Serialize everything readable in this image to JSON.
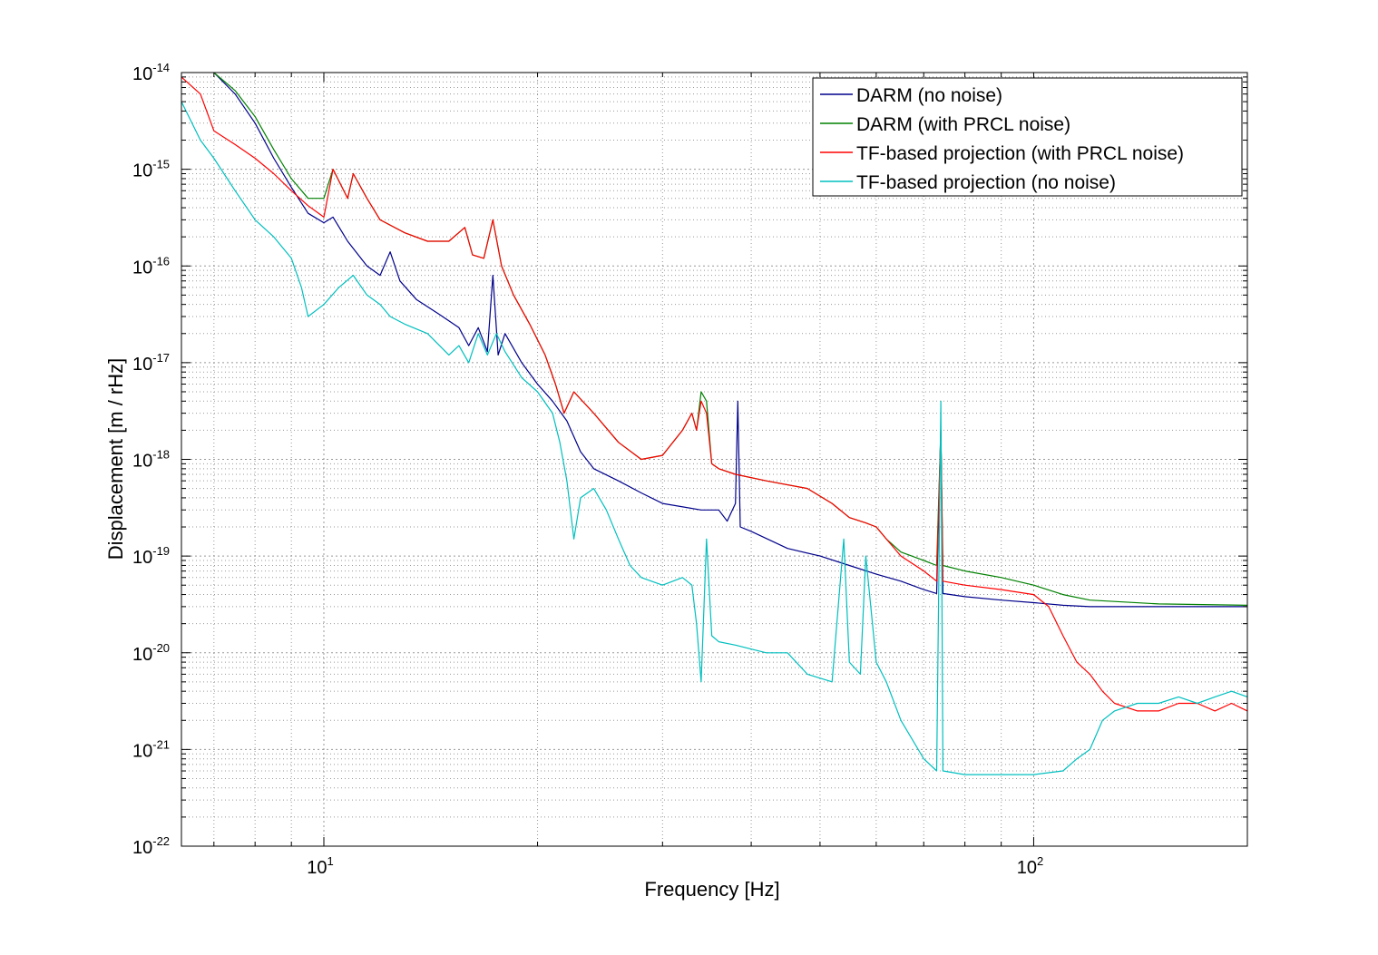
{
  "chart_data": {
    "type": "line",
    "xlabel": "Frequency [Hz]",
    "ylabel": "Displacement [m / rHz]",
    "x_scale": "log",
    "y_scale": "log",
    "xlim": [
      6.3,
      200
    ],
    "ylim": [
      1e-22,
      1e-14
    ],
    "x_major_ticks": [
      {
        "value": 10,
        "base": "10",
        "exp": "1"
      },
      {
        "value": 100,
        "base": "10",
        "exp": "2"
      }
    ],
    "y_major_ticks": [
      {
        "value": 1e-14,
        "base": "10",
        "exp": "-14"
      },
      {
        "value": 1e-15,
        "base": "10",
        "exp": "-15"
      },
      {
        "value": 1e-16,
        "base": "10",
        "exp": "-16"
      },
      {
        "value": 1e-17,
        "base": "10",
        "exp": "-17"
      },
      {
        "value": 1e-18,
        "base": "10",
        "exp": "-18"
      },
      {
        "value": 1e-19,
        "base": "10",
        "exp": "-19"
      },
      {
        "value": 1e-20,
        "base": "10",
        "exp": "-20"
      },
      {
        "value": 1e-21,
        "base": "10",
        "exp": "-21"
      },
      {
        "value": 1e-22,
        "base": "10",
        "exp": "-22"
      }
    ],
    "grid": true,
    "legend_position": "top-right",
    "series": [
      {
        "name": "DARM (no noise)",
        "color": "#00008b",
        "points": [
          [
            7.0,
            1e-14
          ],
          [
            7.5,
            6e-15
          ],
          [
            8.0,
            3e-15
          ],
          [
            8.5,
            1.3e-15
          ],
          [
            9.0,
            6.5e-16
          ],
          [
            9.5,
            3.5e-16
          ],
          [
            10.0,
            2.8e-16
          ],
          [
            10.3,
            3.2e-16
          ],
          [
            10.8,
            1.8e-16
          ],
          [
            11.5,
            1e-16
          ],
          [
            12.0,
            8e-17
          ],
          [
            12.4,
            1.4e-16
          ],
          [
            12.8,
            7e-17
          ],
          [
            13.5,
            4.5e-17
          ],
          [
            14.5,
            3.2e-17
          ],
          [
            15.5,
            2.3e-17
          ],
          [
            16.0,
            1.5e-17
          ],
          [
            16.5,
            2.3e-17
          ],
          [
            17.0,
            1.3e-17
          ],
          [
            17.3,
            8e-17
          ],
          [
            17.6,
            1.2e-17
          ],
          [
            18.0,
            2e-17
          ],
          [
            19.0,
            1e-17
          ],
          [
            20.0,
            6e-18
          ],
          [
            21.0,
            4e-18
          ],
          [
            22.0,
            2.5e-18
          ],
          [
            23.0,
            1.2e-18
          ],
          [
            24.0,
            8e-19
          ],
          [
            26.0,
            6e-19
          ],
          [
            28.0,
            4.5e-19
          ],
          [
            30.0,
            3.5e-19
          ],
          [
            34.0,
            3e-19
          ],
          [
            36.0,
            3e-19
          ],
          [
            37.0,
            2.3e-19
          ],
          [
            38.0,
            3.5e-19
          ],
          [
            38.3,
            4e-18
          ],
          [
            38.6,
            2e-19
          ],
          [
            40.0,
            1.8e-19
          ],
          [
            45.0,
            1.2e-19
          ],
          [
            50.0,
            1e-19
          ],
          [
            55.0,
            8e-20
          ],
          [
            60.0,
            6.5e-20
          ],
          [
            65.0,
            5.5e-20
          ],
          [
            70.0,
            4.5e-20
          ],
          [
            73.0,
            4.1e-20
          ],
          [
            74.0,
            2e-18
          ],
          [
            74.5,
            4.1e-20
          ],
          [
            80.0,
            3.8e-20
          ],
          [
            90.0,
            3.5e-20
          ],
          [
            100.0,
            3.3e-20
          ],
          [
            110.0,
            3.1e-20
          ],
          [
            120.0,
            3e-20
          ],
          [
            150.0,
            3e-20
          ],
          [
            200.0,
            3e-20
          ]
        ]
      },
      {
        "name": "DARM (with PRCL noise)",
        "color": "#008000",
        "points": [
          [
            7.0,
            1e-14
          ],
          [
            7.5,
            6.5e-15
          ],
          [
            8.0,
            3.5e-15
          ],
          [
            8.5,
            1.6e-15
          ],
          [
            9.0,
            8e-16
          ],
          [
            9.5,
            5e-16
          ],
          [
            10.0,
            5e-16
          ],
          [
            10.3,
            1e-15
          ],
          [
            10.8,
            5e-16
          ],
          [
            11.0,
            9e-16
          ],
          [
            11.5,
            5e-16
          ],
          [
            12.0,
            3e-16
          ],
          [
            13.0,
            2.2e-16
          ],
          [
            14.0,
            1.8e-16
          ],
          [
            15.0,
            1.8e-16
          ],
          [
            15.8,
            2.5e-16
          ],
          [
            16.2,
            1.3e-16
          ],
          [
            16.8,
            1.2e-16
          ],
          [
            17.3,
            3e-16
          ],
          [
            17.8,
            1e-16
          ],
          [
            18.5,
            5e-17
          ],
          [
            19.5,
            2.5e-17
          ],
          [
            20.5,
            1.2e-17
          ],
          [
            21.2,
            6e-18
          ],
          [
            21.8,
            3e-18
          ],
          [
            22.5,
            5e-18
          ],
          [
            24.0,
            3e-18
          ],
          [
            26.0,
            1.5e-18
          ],
          [
            28.0,
            1e-18
          ],
          [
            30.0,
            1.1e-18
          ],
          [
            32.0,
            2e-18
          ],
          [
            33.0,
            3e-18
          ],
          [
            33.5,
            2e-18
          ],
          [
            34.0,
            5e-18
          ],
          [
            34.6,
            4e-18
          ],
          [
            35.2,
            9e-19
          ],
          [
            36.0,
            8e-19
          ],
          [
            38.0,
            7e-19
          ],
          [
            42.0,
            6e-19
          ],
          [
            48.0,
            5e-19
          ],
          [
            52.0,
            3.5e-19
          ],
          [
            55.0,
            2.5e-19
          ],
          [
            58.0,
            2.2e-19
          ],
          [
            60.0,
            2e-19
          ],
          [
            62.0,
            1.5e-19
          ],
          [
            65.0,
            1.1e-19
          ],
          [
            70.0,
            9e-20
          ],
          [
            73.0,
            8e-20
          ],
          [
            74.0,
            2e-18
          ],
          [
            74.5,
            8e-20
          ],
          [
            80.0,
            7e-20
          ],
          [
            90.0,
            6e-20
          ],
          [
            100.0,
            5e-20
          ],
          [
            110.0,
            4e-20
          ],
          [
            120.0,
            3.5e-20
          ],
          [
            150.0,
            3.2e-20
          ],
          [
            200.0,
            3.1e-20
          ]
        ]
      },
      {
        "name": "TF-based projection (with PRCL noise)",
        "color": "#ff0000",
        "points": [
          [
            6.3,
            9e-15
          ],
          [
            6.7,
            6e-15
          ],
          [
            7.0,
            2.5e-15
          ],
          [
            7.5,
            1.8e-15
          ],
          [
            8.0,
            1.3e-15
          ],
          [
            8.5,
            9e-16
          ],
          [
            9.0,
            6e-16
          ],
          [
            9.5,
            4.2e-16
          ],
          [
            10.0,
            3.2e-16
          ],
          [
            10.3,
            1e-15
          ],
          [
            10.8,
            5e-16
          ],
          [
            11.0,
            9e-16
          ],
          [
            11.5,
            5e-16
          ],
          [
            12.0,
            3e-16
          ],
          [
            13.0,
            2.2e-16
          ],
          [
            14.0,
            1.8e-16
          ],
          [
            15.0,
            1.8e-16
          ],
          [
            15.8,
            2.5e-16
          ],
          [
            16.2,
            1.3e-16
          ],
          [
            16.8,
            1.2e-16
          ],
          [
            17.3,
            3e-16
          ],
          [
            17.8,
            1e-16
          ],
          [
            18.5,
            5e-17
          ],
          [
            19.5,
            2.5e-17
          ],
          [
            20.5,
            1.2e-17
          ],
          [
            21.2,
            6e-18
          ],
          [
            21.8,
            3e-18
          ],
          [
            22.5,
            5e-18
          ],
          [
            24.0,
            3e-18
          ],
          [
            26.0,
            1.5e-18
          ],
          [
            28.0,
            1e-18
          ],
          [
            30.0,
            1.1e-18
          ],
          [
            32.0,
            2e-18
          ],
          [
            33.0,
            3e-18
          ],
          [
            33.5,
            2e-18
          ],
          [
            34.0,
            4e-18
          ],
          [
            34.6,
            3e-18
          ],
          [
            35.2,
            9e-19
          ],
          [
            36.0,
            8e-19
          ],
          [
            38.0,
            7e-19
          ],
          [
            42.0,
            6e-19
          ],
          [
            48.0,
            5e-19
          ],
          [
            52.0,
            3.5e-19
          ],
          [
            55.0,
            2.5e-19
          ],
          [
            58.0,
            2.2e-19
          ],
          [
            60.0,
            2e-19
          ],
          [
            62.0,
            1.5e-19
          ],
          [
            65.0,
            1e-19
          ],
          [
            70.0,
            7e-20
          ],
          [
            73.0,
            5.5e-20
          ],
          [
            74.0,
            2e-18
          ],
          [
            74.5,
            5.5e-20
          ],
          [
            80.0,
            5e-20
          ],
          [
            90.0,
            4.5e-20
          ],
          [
            100.0,
            4e-20
          ],
          [
            105.0,
            3e-20
          ],
          [
            110.0,
            1.5e-20
          ],
          [
            115.0,
            8e-21
          ],
          [
            120.0,
            6e-21
          ],
          [
            125.0,
            4e-21
          ],
          [
            130.0,
            3e-21
          ],
          [
            140.0,
            2.5e-21
          ],
          [
            150.0,
            2.5e-21
          ],
          [
            160.0,
            3e-21
          ],
          [
            170.0,
            3e-21
          ],
          [
            180.0,
            2.5e-21
          ],
          [
            190.0,
            3e-21
          ],
          [
            200.0,
            2.5e-21
          ]
        ]
      },
      {
        "name": "TF-based projection (no noise)",
        "color": "#00bfbf",
        "points": [
          [
            6.3,
            5e-15
          ],
          [
            6.7,
            2e-15
          ],
          [
            7.0,
            1.3e-15
          ],
          [
            7.5,
            6e-16
          ],
          [
            8.0,
            3e-16
          ],
          [
            8.5,
            2e-16
          ],
          [
            9.0,
            1.2e-16
          ],
          [
            9.3,
            6e-17
          ],
          [
            9.5,
            3e-17
          ],
          [
            10.0,
            4e-17
          ],
          [
            10.5,
            6e-17
          ],
          [
            11.0,
            8e-17
          ],
          [
            11.5,
            5e-17
          ],
          [
            12.0,
            4e-17
          ],
          [
            12.4,
            3e-17
          ],
          [
            13.0,
            2.5e-17
          ],
          [
            14.0,
            2e-17
          ],
          [
            15.0,
            1.2e-17
          ],
          [
            15.5,
            1.5e-17
          ],
          [
            16.0,
            1e-17
          ],
          [
            16.5,
            2e-17
          ],
          [
            17.0,
            1.2e-17
          ],
          [
            17.5,
            2e-17
          ],
          [
            18.0,
            1.3e-17
          ],
          [
            19.0,
            7e-18
          ],
          [
            20.0,
            5e-18
          ],
          [
            21.0,
            3e-18
          ],
          [
            21.5,
            1.5e-18
          ],
          [
            22.0,
            6e-19
          ],
          [
            22.5,
            1.5e-19
          ],
          [
            23.0,
            4e-19
          ],
          [
            24.0,
            5e-19
          ],
          [
            25.0,
            3e-19
          ],
          [
            26.0,
            1.5e-19
          ],
          [
            27.0,
            8e-20
          ],
          [
            28.0,
            6e-20
          ],
          [
            30.0,
            5e-20
          ],
          [
            32.0,
            6e-20
          ],
          [
            33.0,
            5e-20
          ],
          [
            33.5,
            2e-20
          ],
          [
            34.0,
            5e-21
          ],
          [
            34.6,
            1.5e-19
          ],
          [
            35.2,
            1.5e-20
          ],
          [
            36.0,
            1.3e-20
          ],
          [
            38.0,
            1.2e-20
          ],
          [
            42.0,
            1e-20
          ],
          [
            45.0,
            1e-20
          ],
          [
            48.0,
            6e-21
          ],
          [
            52.0,
            5e-21
          ],
          [
            54.0,
            1.5e-19
          ],
          [
            55.0,
            8e-21
          ],
          [
            57.0,
            6e-21
          ],
          [
            58.0,
            1e-19
          ],
          [
            60.0,
            8e-21
          ],
          [
            62.0,
            5e-21
          ],
          [
            65.0,
            2e-21
          ],
          [
            70.0,
            8e-22
          ],
          [
            73.0,
            6e-22
          ],
          [
            74.0,
            4e-18
          ],
          [
            74.5,
            6e-22
          ],
          [
            80.0,
            5.5e-22
          ],
          [
            90.0,
            5.5e-22
          ],
          [
            100.0,
            5.5e-22
          ],
          [
            110.0,
            6e-22
          ],
          [
            115.0,
            8e-22
          ],
          [
            120.0,
            1e-21
          ],
          [
            125.0,
            2e-21
          ],
          [
            130.0,
            2.5e-21
          ],
          [
            140.0,
            3e-21
          ],
          [
            150.0,
            3e-21
          ],
          [
            160.0,
            3.5e-21
          ],
          [
            170.0,
            3e-21
          ],
          [
            180.0,
            3.5e-21
          ],
          [
            190.0,
            4e-21
          ],
          [
            200.0,
            3.5e-21
          ]
        ]
      }
    ]
  }
}
